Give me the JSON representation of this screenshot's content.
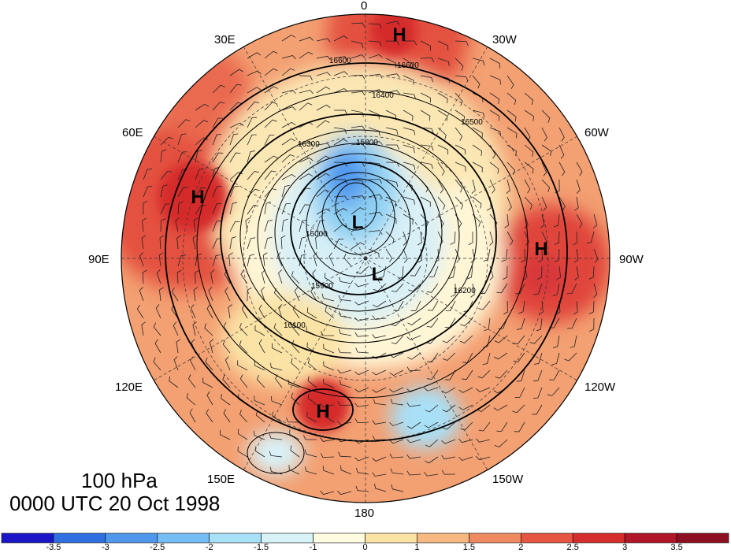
{
  "map": {
    "level": "100 hPa",
    "time": "0000 UTC 20 Oct 1998",
    "longitude_labels": {
      "top": "0",
      "top_left": "30E",
      "top_right": "30W",
      "upper_left": "60E",
      "upper_right": "60W",
      "left": "90E",
      "right": "90W",
      "lower_left": "120E",
      "lower_right": "120W",
      "bottom_left": "150E",
      "bottom_right": "150W",
      "bottom": "180"
    },
    "pressure_centers": [
      {
        "type": "H",
        "region": "north-atlantic"
      },
      {
        "type": "H",
        "region": "central-asia"
      },
      {
        "type": "L",
        "region": "polar-primary"
      },
      {
        "type": "L",
        "region": "polar-secondary"
      },
      {
        "type": "H",
        "region": "north-america"
      },
      {
        "type": "H",
        "region": "north-pacific"
      }
    ],
    "contour_labels": [
      "16600",
      "16600",
      "16500",
      "16400",
      "16300",
      "16200",
      "16100",
      "16000",
      "15900",
      "15800"
    ],
    "colorbar": {
      "ticks": [
        "-3.5",
        "-3",
        "-2.5",
        "-2",
        "-1.5",
        "-1",
        "0",
        "1",
        "1.5",
        "2",
        "2.5",
        "3",
        "3.5"
      ],
      "colors": [
        "#1a16c8",
        "#2f6fe0",
        "#4f98ee",
        "#74bdf5",
        "#a8e0f8",
        "#d8f2f8",
        "#fffbe0",
        "#fbe3a6",
        "#f6b981",
        "#ef8960",
        "#e65442",
        "#d52c2c",
        "#b1152a",
        "#8e0e22"
      ]
    }
  }
}
